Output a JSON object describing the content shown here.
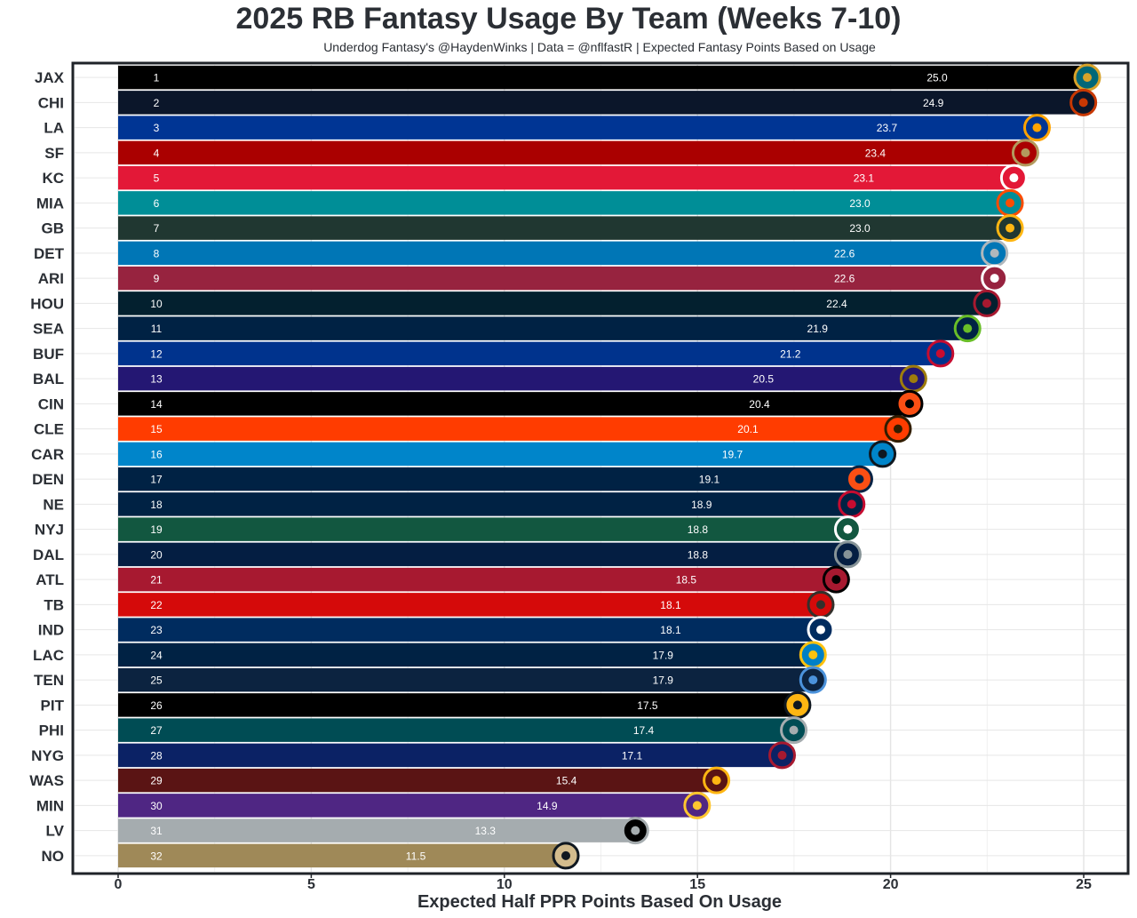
{
  "title": "2025 RB Fantasy Usage By Team (Weeks 7-10)",
  "subtitle": "Underdog Fantasy's @HaydenWinks | Data = @nflfastR | Expected Fantasy Points Based on Usage",
  "chart_data": {
    "type": "bar",
    "orientation": "horizontal",
    "title": "2025 RB Fantasy Usage By Team (Weeks 7-10)",
    "subtitle": "Underdog Fantasy's @HaydenWinks | Data = @nflfastR | Expected Fantasy Points Based on Usage",
    "xlabel": "Expected Half PPR Points Based On Usage",
    "ylabel": "",
    "xlim": [
      -1.2,
      26.0
    ],
    "x_ticks": [
      0,
      5,
      10,
      15,
      20,
      25
    ],
    "grid": true,
    "bar_end_marks": "team logos",
    "categories": [
      "JAX",
      "CHI",
      "LA",
      "SF",
      "KC",
      "MIA",
      "GB",
      "DET",
      "ARI",
      "HOU",
      "SEA",
      "BUF",
      "BAL",
      "CIN",
      "CLE",
      "CAR",
      "DEN",
      "NE",
      "NYJ",
      "DAL",
      "ATL",
      "TB",
      "IND",
      "LAC",
      "TEN",
      "PIT",
      "PHI",
      "NYG",
      "WAS",
      "MIN",
      "LV",
      "NO"
    ],
    "ranks": [
      1,
      2,
      3,
      4,
      5,
      6,
      7,
      8,
      9,
      10,
      11,
      12,
      13,
      14,
      15,
      16,
      17,
      18,
      19,
      20,
      21,
      22,
      23,
      24,
      25,
      26,
      27,
      28,
      29,
      30,
      31,
      32
    ],
    "values": [
      25.0,
      24.9,
      23.7,
      23.4,
      23.1,
      23.0,
      23.0,
      22.6,
      22.6,
      22.4,
      21.9,
      21.2,
      20.5,
      20.4,
      20.1,
      19.7,
      19.1,
      18.9,
      18.8,
      18.8,
      18.5,
      18.1,
      18.1,
      17.9,
      17.9,
      17.5,
      17.4,
      17.1,
      15.4,
      14.9,
      13.3,
      11.5
    ],
    "value_labels": [
      "25.0",
      "24.9",
      "23.7",
      "23.4",
      "23.1",
      "23.0",
      "23.0",
      "22.6",
      "22.6",
      "22.4",
      "21.9",
      "21.2",
      "20.5",
      "20.4",
      "20.1",
      "19.7",
      "19.1",
      "18.9",
      "18.8",
      "18.8",
      "18.5",
      "18.1",
      "18.1",
      "17.9",
      "17.9",
      "17.5",
      "17.4",
      "17.1",
      "15.4",
      "14.9",
      "13.3",
      "11.5"
    ],
    "colors": [
      "#000000",
      "#0b162a",
      "#003594",
      "#aa0000",
      "#e31837",
      "#008e97",
      "#203731",
      "#0076b6",
      "#97233f",
      "#03202f",
      "#002244",
      "#00338d",
      "#241773",
      "#000000",
      "#ff3c00",
      "#0085ca",
      "#002244",
      "#002244",
      "#125740",
      "#041e42",
      "#a71930",
      "#d50a0a",
      "#002c5f",
      "#002244",
      "#0c2340",
      "#000000",
      "#004c54",
      "#0b2265",
      "#5a1414",
      "#4f2683",
      "#a5acaf",
      "#9f8958"
    ],
    "logo_colors": [
      [
        "#006778",
        "#d7a22a"
      ],
      [
        "#0b162a",
        "#c83803"
      ],
      [
        "#003594",
        "#ffa300"
      ],
      [
        "#aa0000",
        "#b3995d"
      ],
      [
        "#e31837",
        "#ffffff"
      ],
      [
        "#008e97",
        "#fc4c02"
      ],
      [
        "#203731",
        "#ffb612"
      ],
      [
        "#0076b6",
        "#b0b7bc"
      ],
      [
        "#97233f",
        "#ffffff"
      ],
      [
        "#03202f",
        "#a71930"
      ],
      [
        "#002244",
        "#69be28"
      ],
      [
        "#00338d",
        "#c60c30"
      ],
      [
        "#241773",
        "#9e7c0c"
      ],
      [
        "#fb4f14",
        "#000000"
      ],
      [
        "#ff3c00",
        "#311d00"
      ],
      [
        "#0085ca",
        "#101820"
      ],
      [
        "#fb4f14",
        "#002244"
      ],
      [
        "#002244",
        "#c60c30"
      ],
      [
        "#125740",
        "#ffffff"
      ],
      [
        "#041e42",
        "#869397"
      ],
      [
        "#a71930",
        "#000000"
      ],
      [
        "#d50a0a",
        "#34302b"
      ],
      [
        "#002c5f",
        "#ffffff"
      ],
      [
        "#0080c6",
        "#ffc20e"
      ],
      [
        "#0c2340",
        "#4b92db"
      ],
      [
        "#ffb612",
        "#101820"
      ],
      [
        "#004c54",
        "#a5acaf"
      ],
      [
        "#0b2265",
        "#a71930"
      ],
      [
        "#5a1414",
        "#ffb612"
      ],
      [
        "#4f2683",
        "#ffc62f"
      ],
      [
        "#000000",
        "#a5acaf"
      ],
      [
        "#d3bc8d",
        "#101820"
      ]
    ]
  }
}
